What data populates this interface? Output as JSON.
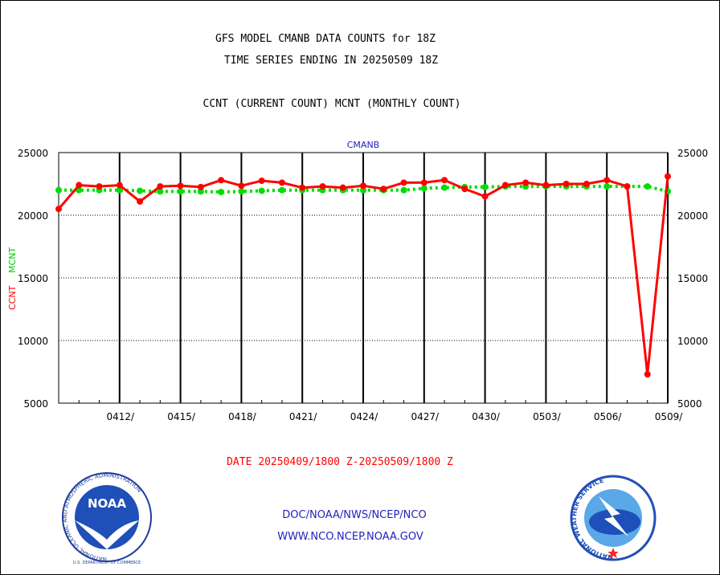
{
  "chart_data": {
    "type": "line",
    "title": "GFS MODEL CMANB DATA COUNTS for 18Z",
    "subtitle": "TIME SERIES ENDING IN 20250509 18Z",
    "series_caption": "CCNT (CURRENT COUNT) MCNT (MONTHLY COUNT)",
    "panel_label": "CMANB",
    "ylabel_ccnt": "CCNT",
    "ylabel_mcnt": "MCNT",
    "xlabel": "DATE 20250409/1800 Z-20250509/1800 Z",
    "ylim": [
      5000,
      25000
    ],
    "yticks": [
      5000,
      10000,
      15000,
      20000,
      25000
    ],
    "ytick_labels": [
      "5000",
      "10000",
      "15000",
      "20000",
      "25000"
    ],
    "xtick_labels": [
      "0412/",
      "0415/",
      "0418/",
      "0421/",
      "0424/",
      "0427/",
      "0430/",
      "0503/",
      "0506/",
      "0509/"
    ],
    "x": [
      "0409",
      "0410",
      "0411",
      "0412",
      "0413",
      "0414",
      "0415",
      "0416",
      "0417",
      "0418",
      "0419",
      "0420",
      "0421",
      "0422",
      "0423",
      "0424",
      "0425",
      "0426",
      "0427",
      "0428",
      "0429",
      "0430",
      "0501",
      "0502",
      "0503",
      "0504",
      "0505",
      "0506",
      "0507",
      "0508",
      "0509"
    ],
    "series": [
      {
        "name": "CCNT",
        "color": "#ff0000",
        "style": "solid",
        "values": [
          20500,
          22400,
          22300,
          22400,
          21100,
          22300,
          22350,
          22250,
          22800,
          22350,
          22750,
          22600,
          22200,
          22300,
          22200,
          22350,
          22100,
          22600,
          22600,
          22800,
          22100,
          21500,
          22400,
          22600,
          22400,
          22500,
          22500,
          22800,
          22300,
          7300,
          23100
        ]
      },
      {
        "name": "MCNT",
        "color": "#00dd00",
        "style": "dotted",
        "values": [
          22000,
          22000,
          22000,
          22000,
          21950,
          21900,
          21900,
          21900,
          21850,
          21900,
          21950,
          22000,
          22000,
          22000,
          22000,
          22000,
          22000,
          22000,
          22150,
          22200,
          22250,
          22250,
          22300,
          22300,
          22300,
          22300,
          22300,
          22300,
          22300,
          22300,
          21900
        ]
      }
    ],
    "grid": true,
    "legend": "none"
  },
  "footer": {
    "line1": "DOC/NOAA/NWS/NCEP/NCO",
    "line2": "WWW.NCO.NCEP.NOAA.GOV"
  },
  "logos": {
    "noaa_text": "NOAA",
    "noaa_ring": "NATIONAL OCEANIC AND ATMOSPHERIC ADMINISTRATION",
    "noaa_bottom": "U.S. DEPARTMENT OF COMMERCE",
    "nws_ring": "NATIONAL WEATHER SERVICE"
  }
}
